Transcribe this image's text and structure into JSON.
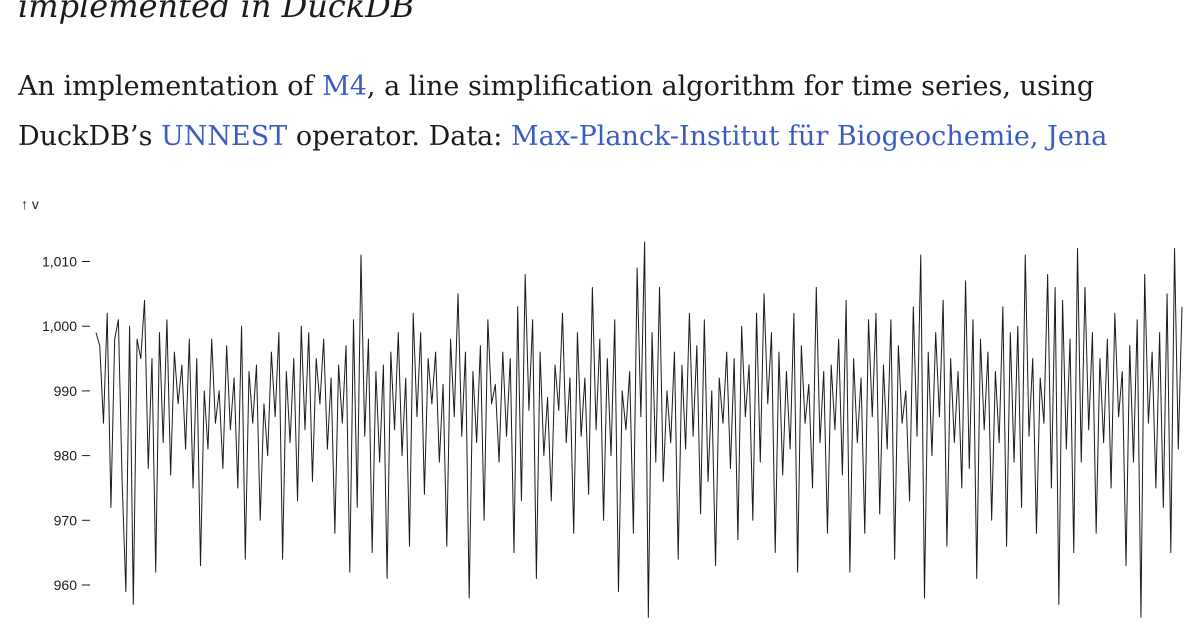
{
  "header": {
    "title": "implemented in DuckDB"
  },
  "description": {
    "part1": "An implementation of ",
    "link_m4": "M4",
    "part2": ", a line simplification algorithm for time series, using DuckDB’s ",
    "link_unnest": "UNNEST",
    "part3": " operator. Data: ",
    "link_data": "Max-Planck-Institut für Biogeochemie, Jena"
  },
  "colors": {
    "link": "#3b5cc4",
    "line": "#1b1b1b"
  },
  "chart_data": {
    "type": "line",
    "ylabel": "↑ v",
    "xlabel": "",
    "ylim": [
      955,
      1015
    ],
    "yticks": [
      960,
      970,
      980,
      990,
      1000,
      1010
    ],
    "ytick_labels": [
      "960",
      "970",
      "980",
      "990",
      "1,000",
      "1,010"
    ],
    "grid": false,
    "series": [
      {
        "values": [
          999,
          997,
          985,
          1002,
          972,
          998,
          1001,
          976,
          959,
          1000,
          957,
          998,
          995,
          1004,
          978,
          995,
          962,
          999,
          982,
          1001,
          977,
          996,
          988,
          994,
          981,
          998,
          975,
          995,
          963,
          990,
          981,
          998,
          985,
          990,
          978,
          997,
          984,
          992,
          975,
          1000,
          964,
          993,
          985,
          994,
          970,
          988,
          980,
          996,
          986,
          999,
          964,
          993,
          982,
          995,
          973,
          1000,
          984,
          999,
          976,
          995,
          988,
          998,
          981,
          992,
          968,
          994,
          985,
          997,
          962,
          1001,
          972,
          1011,
          983,
          998,
          965,
          993,
          979,
          994,
          961,
          996,
          984,
          999,
          980,
          992,
          966,
          1002,
          986,
          999,
          974,
          995,
          988,
          996,
          979,
          991,
          966,
          998,
          986,
          1005,
          983,
          996,
          958,
          993,
          982,
          997,
          970,
          1001,
          988,
          991,
          979,
          996,
          983,
          995,
          965,
          1003,
          973,
          1008,
          987,
          1001,
          961,
          996,
          980,
          989,
          973,
          994,
          987,
          1002,
          982,
          992,
          968,
          999,
          983,
          992,
          974,
          1006,
          984,
          998,
          970,
          995,
          980,
          1001,
          959,
          990,
          984,
          993,
          968,
          1009,
          986,
          1013,
          955,
          999,
          979,
          1006,
          976,
          990,
          982,
          996,
          964,
          994,
          981,
          1002,
          983,
          997,
          971,
          1001,
          976,
          990,
          963,
          992,
          985,
          996,
          978,
          995,
          967,
          1000,
          986,
          994,
          970,
          1002,
          979,
          1005,
          988,
          999,
          965,
          996,
          977,
          993,
          981,
          1002,
          962,
          997,
          985,
          991,
          975,
          1006,
          982,
          993,
          968,
          994,
          984,
          998,
          977,
          1004,
          962,
          995,
          982,
          992,
          968,
          1001,
          986,
          1002,
          971,
          994,
          981,
          1001,
          964,
          997,
          985,
          990,
          973,
          1003,
          983,
          1011,
          958,
          996,
          980,
          999,
          986,
          1004,
          966,
          995,
          982,
          993,
          975,
          1007,
          978,
          1001,
          961,
          998,
          984,
          996,
          970,
          993,
          982,
          1003,
          966,
          999,
          979,
          1000,
          972,
          1011,
          983,
          995,
          968,
          992,
          985,
          1008,
          975,
          1006,
          957,
          1004,
          981,
          998,
          965,
          1012,
          979,
          1006,
          984,
          999,
          968,
          995,
          982,
          998,
          975,
          1002,
          986,
          993,
          963,
          997,
          979,
          1001,
          955,
          1008,
          985,
          996,
          975,
          999,
          972,
          1005,
          965,
          1012,
          981,
          1003
        ],
        "color": "#1b1b1b"
      }
    ]
  }
}
